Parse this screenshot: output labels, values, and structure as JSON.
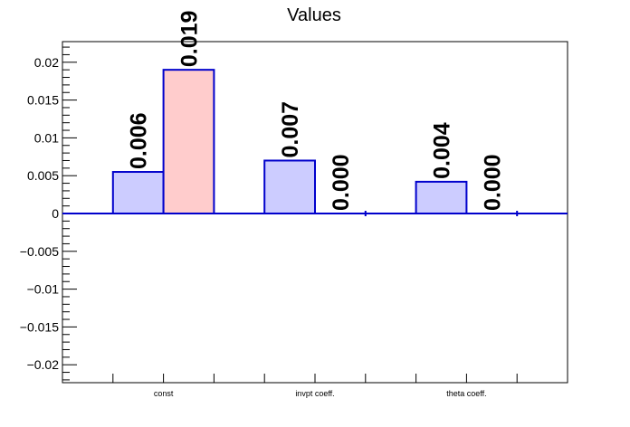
{
  "chart_data": {
    "type": "bar",
    "title": "Values",
    "xlabel": "",
    "ylabel": "",
    "categories": [
      "const",
      "invpt coeff.",
      "theta coeff."
    ],
    "ylim": [
      -0.0225,
      0.0225
    ],
    "yticks": [
      "0.02",
      "0.015",
      "0.01",
      "0.005",
      "0",
      "−0.005",
      "−0.01",
      "−0.015",
      "−0.02"
    ],
    "ytick_values": [
      0.02,
      0.015,
      0.01,
      0.005,
      0,
      -0.005,
      -0.01,
      -0.015,
      -0.02
    ],
    "grid": false,
    "series": [
      {
        "values": [
          0.0055,
          0.007,
          0.0042
        ],
        "labels": [
          "0.006",
          "0.007",
          "0.004"
        ],
        "fill": "#ccccff",
        "stroke": "#0000cc"
      },
      {
        "values": [
          0.019,
          0.0,
          0.0
        ],
        "labels": [
          "0.019",
          "0.000",
          "0.000"
        ],
        "fills": [
          "#ffcccc",
          "#ccccff",
          "#ccccff"
        ],
        "stroke": "#0000cc"
      }
    ]
  }
}
